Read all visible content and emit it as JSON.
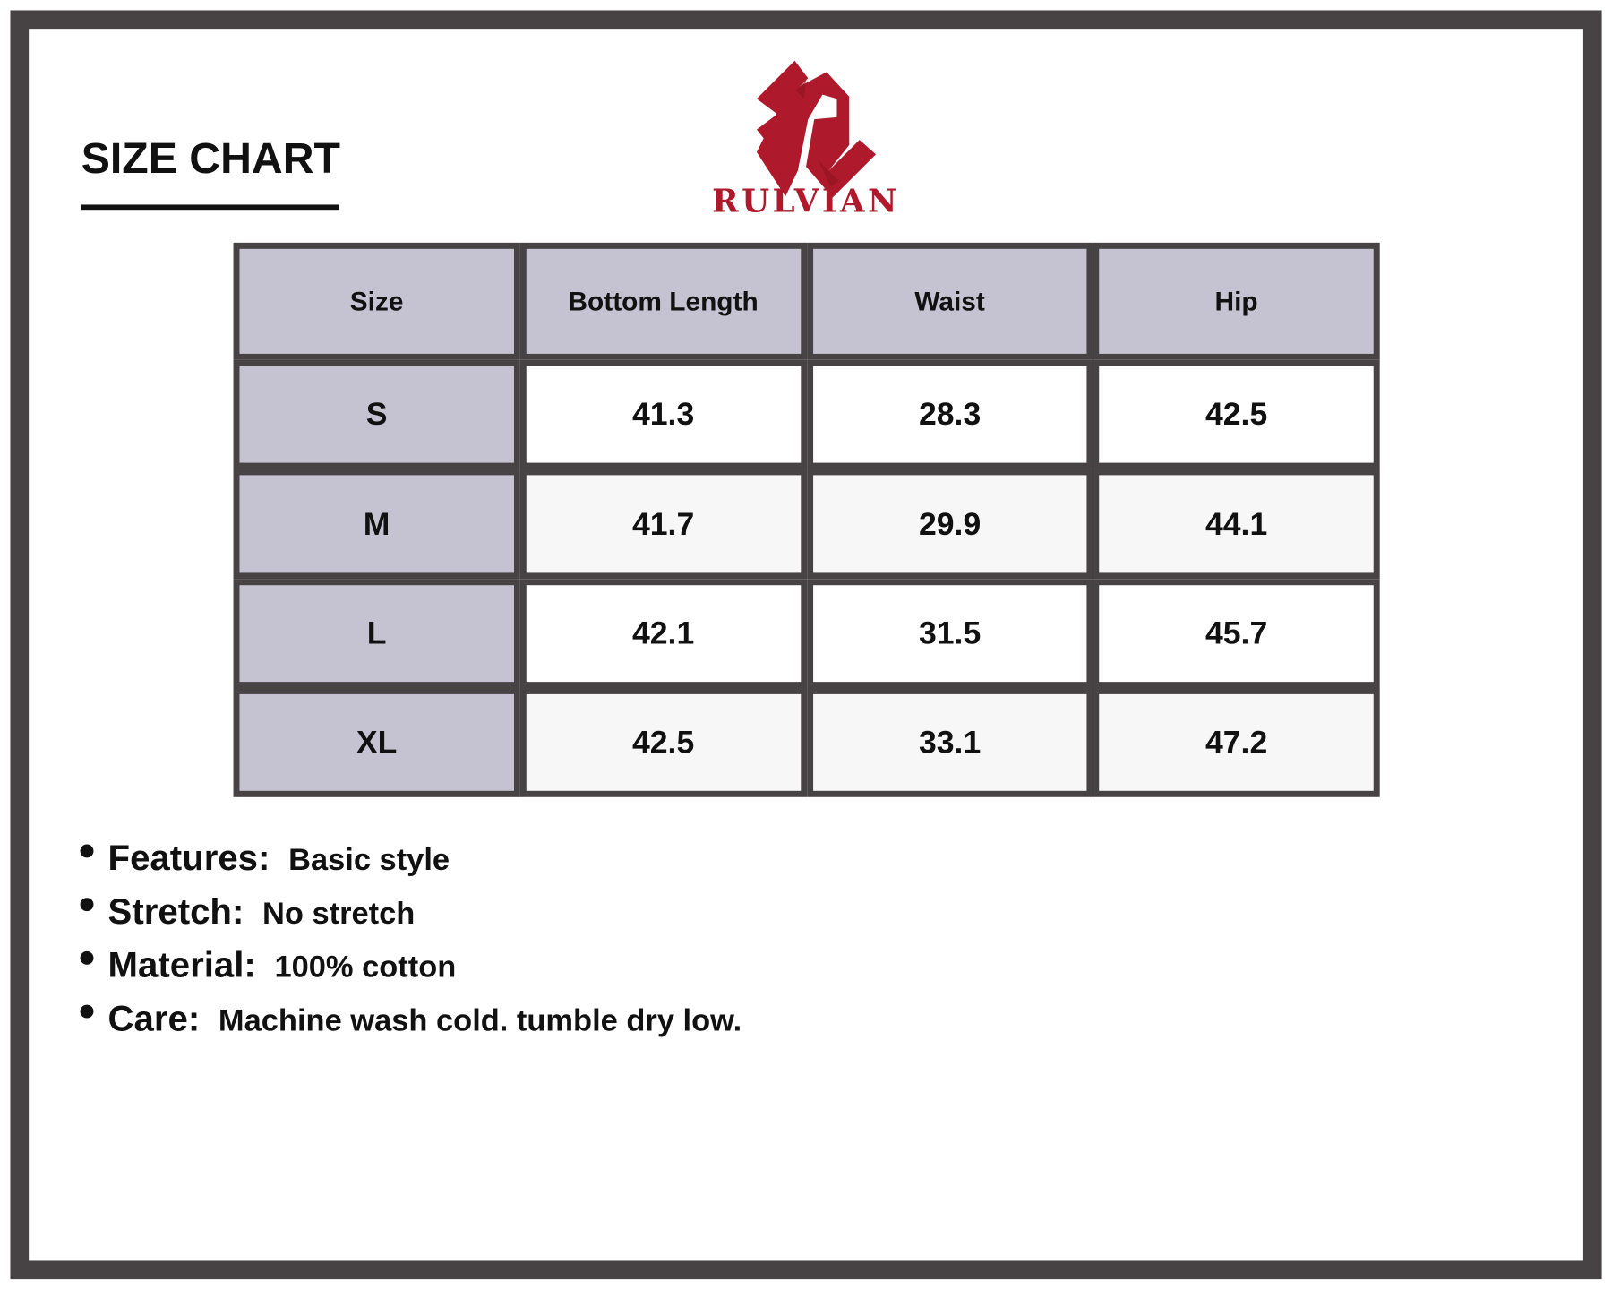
{
  "title": "SIZE CHART",
  "brand": {
    "name": "RULVIAN",
    "color": "#ae1a2b"
  },
  "table": {
    "headers": [
      "Size",
      "Bottom Length",
      "Waist",
      "Hip"
    ],
    "rows": [
      [
        "S",
        "41.3",
        "28.3",
        "42.5"
      ],
      [
        "M",
        "41.7",
        "29.9",
        "44.1"
      ],
      [
        "L",
        "42.1",
        "31.5",
        "45.7"
      ],
      [
        "XL",
        "42.5",
        "33.1",
        "47.2"
      ]
    ]
  },
  "notes": [
    {
      "label": "Features:",
      "value": "Basic style"
    },
    {
      "label": "Stretch:",
      "value": "No stretch"
    },
    {
      "label": "Material:",
      "value": "100% cotton"
    },
    {
      "label": "Care:",
      "value": "Machine wash cold. tumble dry low."
    }
  ]
}
